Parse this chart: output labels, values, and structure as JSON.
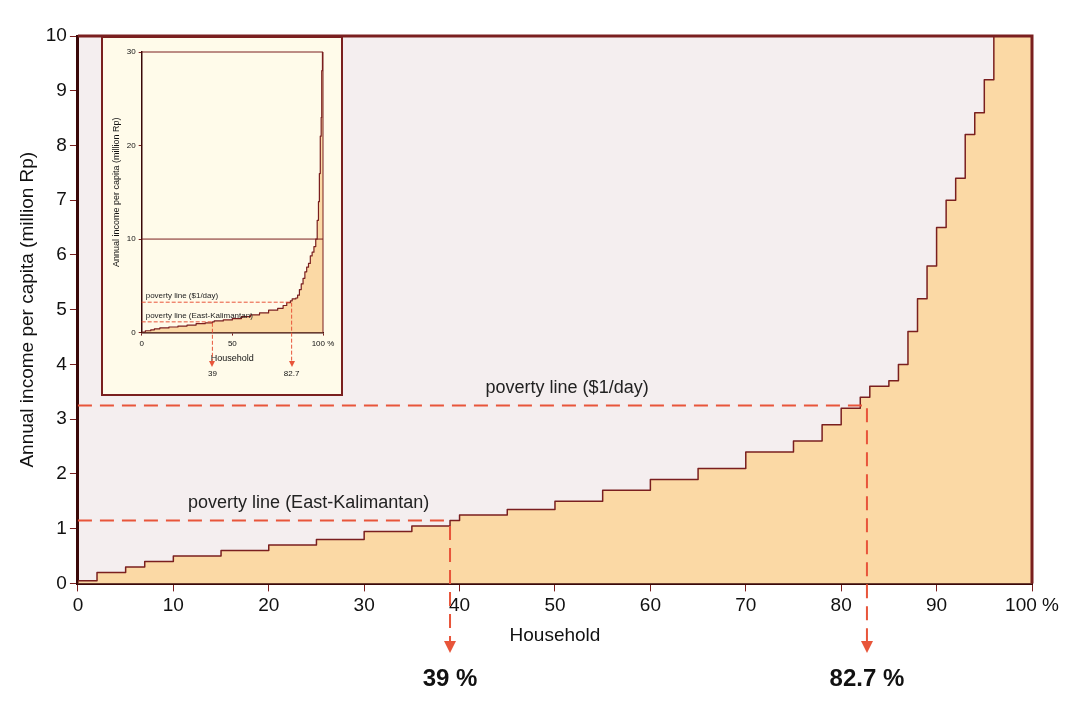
{
  "chart_data": [
    {
      "type": "step",
      "xlabel": "Household",
      "ylabel": "Annual income per capita (million Rp)",
      "xlim": [
        0,
        100
      ],
      "ylim": [
        0,
        10
      ],
      "xticks": [
        0,
        10,
        20,
        30,
        40,
        50,
        60,
        70,
        80,
        90,
        {
          "value": 100,
          "label": "100 %"
        }
      ],
      "yticks": [
        0,
        1,
        2,
        3,
        4,
        5,
        6,
        7,
        8,
        9,
        10
      ],
      "series": [
        {
          "color": "#7a1f1f",
          "x": [
            0,
            2,
            5,
            7,
            10,
            15,
            20,
            25,
            30,
            35,
            39,
            40,
            45,
            50,
            55,
            60,
            65,
            70,
            75,
            78,
            80,
            82,
            83,
            85,
            86,
            87,
            88,
            89,
            90,
            91,
            92,
            93,
            94,
            95,
            96,
            96.6,
            100
          ],
          "values": [
            0,
            0.05,
            0.2,
            0.3,
            0.4,
            0.5,
            0.6,
            0.7,
            0.8,
            0.95,
            1.05,
            1.15,
            1.25,
            1.35,
            1.5,
            1.7,
            1.9,
            2.1,
            2.4,
            2.6,
            2.9,
            3.2,
            3.4,
            3.6,
            3.7,
            4.0,
            4.6,
            5.2,
            5.8,
            6.5,
            7.0,
            7.4,
            8.2,
            8.6,
            9.2,
            10,
            10
          ]
        }
      ],
      "ref_lines": [
        {
          "axis": "y",
          "value": 3.25,
          "label": "poverty line ($1/day)",
          "color": "#e8553a",
          "line_style": "dashed"
        },
        {
          "axis": "y",
          "value": 1.15,
          "label": "poverty line (East-Kalimantan)",
          "color": "#e8553a",
          "line_style": "dashed"
        },
        {
          "axis": "x",
          "value": 39,
          "label": "39 %",
          "color": "#e8553a",
          "line_style": "dashed"
        },
        {
          "axis": "x",
          "value": 82.7,
          "label": "82.7 %",
          "color": "#e8553a",
          "line_style": "dashed"
        }
      ]
    },
    {
      "type": "step",
      "xlabel": "Household",
      "ylabel": "Annual income per capita (million Rp)",
      "xlim": [
        0,
        100
      ],
      "ylim": [
        0,
        30
      ],
      "xticks": [
        0,
        50,
        {
          "value": 100,
          "label": "100 %"
        }
      ],
      "yticks": [
        0,
        10,
        20,
        30
      ],
      "series": [
        {
          "color": "#7a1f1f",
          "x": [
            0,
            2,
            5,
            7,
            10,
            15,
            20,
            25,
            30,
            35,
            39,
            40,
            45,
            50,
            55,
            60,
            65,
            70,
            75,
            78,
            80,
            82,
            83,
            85,
            86,
            87,
            88,
            89,
            90,
            91,
            92,
            93,
            94,
            95,
            96,
            96.8,
            97.5,
            98,
            98.5,
            99,
            99.3,
            99.7,
            100
          ],
          "values": [
            0,
            0.05,
            0.2,
            0.3,
            0.4,
            0.5,
            0.6,
            0.7,
            0.8,
            0.95,
            1.05,
            1.15,
            1.25,
            1.35,
            1.5,
            1.7,
            1.9,
            2.1,
            2.4,
            2.6,
            2.9,
            3.2,
            3.4,
            3.6,
            3.7,
            4.0,
            4.6,
            5.2,
            5.8,
            6.5,
            7.0,
            7.4,
            8.2,
            8.6,
            9.2,
            10,
            12,
            14,
            17,
            21,
            23,
            28,
            30
          ]
        }
      ],
      "ref_lines": [
        {
          "axis": "y",
          "value": 10,
          "color": "#7a1f1f",
          "line_style": "solid"
        },
        {
          "axis": "y",
          "value": 3.25,
          "label": "poverty line ($1/day)",
          "color": "#e8553a",
          "line_style": "dashed"
        },
        {
          "axis": "y",
          "value": 1.15,
          "label": "poverty line (East-Kalimantan)",
          "color": "#e8553a",
          "line_style": "dashed"
        },
        {
          "axis": "x",
          "value": 39,
          "label": "39",
          "color": "#e8553a",
          "line_style": "dashed"
        },
        {
          "axis": "x",
          "value": 82.7,
          "label": "82.7",
          "color": "#e8553a",
          "line_style": "dashed"
        }
      ]
    }
  ]
}
